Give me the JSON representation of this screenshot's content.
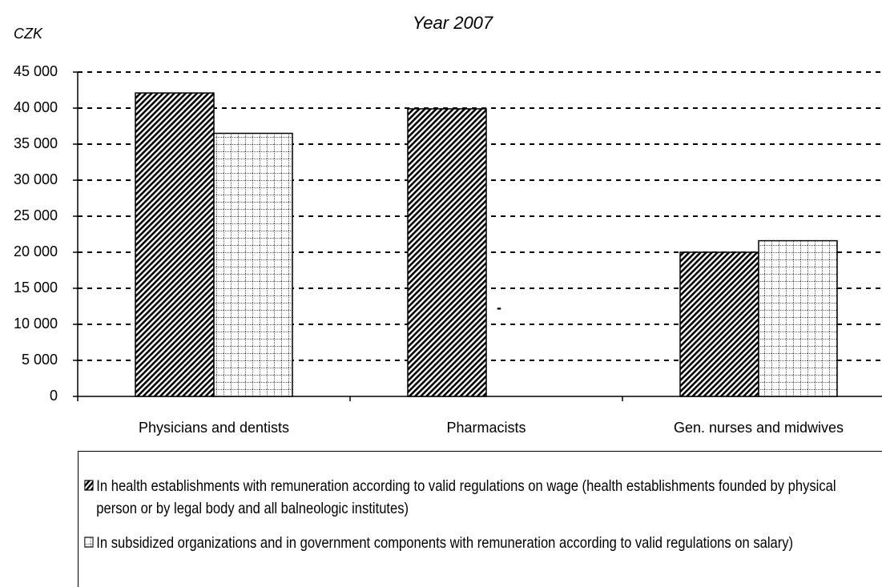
{
  "chart_data": {
    "type": "bar",
    "title": "Year 2007",
    "y_label": "CZK",
    "categories": [
      "Physicians and dentists",
      "Pharmacists",
      "Gen. nurses and midwives"
    ],
    "series": [
      {
        "name": "In health establishments with remuneration according to valid regulations on wage (health establishments founded by physical person or by legal body and all balneologic institutes)",
        "color": "#000000",
        "pattern": "diagonal",
        "values": [
          42100,
          39900,
          20000
        ]
      },
      {
        "name": "In subsidized organizations and in government components with remuneration according to valid regulations on salary)",
        "color": "#555555",
        "pattern": "grid",
        "values": [
          36500,
          null,
          21600
        ],
        "value_labels": [
          null,
          "-",
          null
        ]
      }
    ],
    "ylim": [
      0,
      45000
    ],
    "yticks": [
      0,
      {
        "value": 5000,
        "label": "5 000"
      },
      {
        "value": 10000,
        "label": "10 000"
      },
      {
        "value": 15000,
        "label": "15 000"
      },
      {
        "value": 20000,
        "label": "20 000"
      },
      {
        "value": 25000,
        "label": "25 000"
      },
      {
        "value": 30000,
        "label": "30 000"
      },
      {
        "value": 35000,
        "label": "35 000"
      },
      {
        "value": 40000,
        "label": "40 000"
      },
      {
        "value": 45000,
        "label": "45 000"
      }
    ],
    "grid": true,
    "legend": "bottom"
  }
}
